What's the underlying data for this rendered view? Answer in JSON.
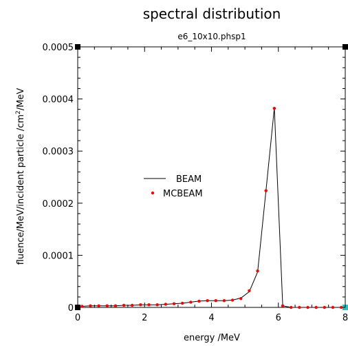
{
  "chart_data": {
    "type": "line",
    "title": "spectral distribution",
    "subtitle": "e6_10x10.phsp1",
    "xlabel": "energy  /MeV",
    "ylabel_main": "fluence/MeV/incident particle /cm",
    "ylabel_sup": "2",
    "ylabel_end": "/MeV",
    "xlim": [
      0,
      8
    ],
    "ylim": [
      0,
      0.0005
    ],
    "xticks": [
      0,
      2,
      4,
      6,
      8
    ],
    "xtick_labels": [
      "0",
      "2",
      "4",
      "6",
      "8"
    ],
    "yticks": [
      0,
      0.0001,
      0.0002,
      0.0003,
      0.0004,
      0.0005
    ],
    "ytick_labels": [
      "0",
      "0.0001",
      "0.0002",
      "0.0003",
      "0.0004",
      "0.0005"
    ],
    "legend_position": "center-left",
    "grid": false,
    "series": [
      {
        "name": "BEAM",
        "style": "line",
        "color": "#000000",
        "x": [
          0.13,
          0.38,
          0.63,
          0.88,
          1.13,
          1.38,
          1.63,
          1.88,
          2.13,
          2.38,
          2.63,
          2.88,
          3.13,
          3.38,
          3.63,
          3.88,
          4.13,
          4.38,
          4.63,
          4.88,
          5.13,
          5.38,
          5.63,
          5.88,
          6.13,
          6.38,
          6.63,
          6.88,
          7.13,
          7.38,
          7.63,
          7.88
        ],
        "y": [
          2e-06,
          3e-06,
          3e-06,
          3e-06,
          3e-06,
          4e-06,
          4e-06,
          5e-06,
          5e-06,
          5e-06,
          6e-06,
          7e-06,
          8e-06,
          1e-05,
          1.2e-05,
          1.3e-05,
          1.3e-05,
          1.3e-05,
          1.4e-05,
          1.8e-05,
          3e-05,
          6.8e-05,
          0.000225,
          0.000383,
          3e-06,
          0,
          0,
          0,
          0,
          0,
          0,
          0
        ]
      },
      {
        "name": "MCBEAM",
        "style": "markers",
        "color": "#ff0000",
        "x": [
          0.13,
          0.38,
          0.63,
          0.88,
          1.13,
          1.38,
          1.63,
          1.88,
          2.13,
          2.38,
          2.63,
          2.88,
          3.13,
          3.38,
          3.63,
          3.88,
          4.13,
          4.38,
          4.63,
          4.88,
          5.13,
          5.38,
          5.63,
          5.88,
          6.13,
          6.38,
          6.63,
          6.88,
          7.13,
          7.38,
          7.63,
          7.88
        ],
        "y": [
          2e-06,
          3e-06,
          3e-06,
          3e-06,
          3e-06,
          4e-06,
          4e-06,
          5e-06,
          5e-06,
          5e-06,
          6e-06,
          7e-06,
          8e-06,
          1e-05,
          1.2e-05,
          1.3e-05,
          1.3e-05,
          1.3e-05,
          1.4e-05,
          1.7e-05,
          3.2e-05,
          7e-05,
          0.000224,
          0.000382,
          3e-06,
          0,
          0,
          0,
          0,
          0,
          0,
          0
        ]
      }
    ]
  }
}
